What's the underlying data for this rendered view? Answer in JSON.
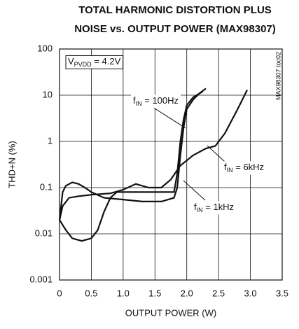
{
  "chart_data": {
    "type": "line",
    "title": [
      "TOTAL HARMONIC DISTORTION PLUS",
      "NOISE vs. OUTPUT POWER (MAX98307)"
    ],
    "x_label": "OUTPUT POWER (W)",
    "y_label": "THD+N (%)",
    "side_note": "MAX98307 toc02",
    "condition": {
      "main": "V",
      "sub": "PVDD",
      "rest": " = 4.2V"
    },
    "xlim": [
      0,
      3.5
    ],
    "xticks": [
      0,
      0.5,
      {
        "value": 1,
        "label": "1.0"
      },
      1.5,
      {
        "value": 2,
        "label": "2.0"
      },
      2.5,
      {
        "value": 3,
        "label": "3.0"
      },
      3.5
    ],
    "ylim": [
      0.001,
      100
    ],
    "yticks": [
      0.001,
      0.01,
      0.1,
      1,
      10,
      100
    ],
    "log_y": true,
    "grid": true,
    "series": [
      {
        "label": {
          "main": "f",
          "sub": "IN",
          "rest": " = 100Hz"
        },
        "color": "#111111",
        "x": [
          0,
          0.05,
          0.1,
          0.2,
          0.3,
          0.4,
          0.5,
          0.7,
          1.0,
          1.3,
          1.6,
          1.8,
          1.85,
          1.9,
          1.95,
          2.0,
          2.1,
          2.2,
          2.3
        ],
        "values": [
          0.02,
          0.08,
          0.11,
          0.13,
          0.12,
          0.1,
          0.08,
          0.06,
          0.055,
          0.05,
          0.05,
          0.06,
          0.1,
          0.5,
          2,
          5,
          8,
          11,
          14
        ]
      },
      {
        "label": {
          "main": "f",
          "sub": "IN",
          "rest": " = 1kHz"
        },
        "color": "#111111",
        "x": [
          0,
          0.1,
          0.2,
          0.35,
          0.5,
          0.6,
          0.7,
          0.8,
          0.9,
          1.0,
          1.5,
          1.8,
          1.85,
          1.9,
          1.95,
          2.0,
          2.1,
          2.25
        ],
        "values": [
          0.02,
          0.012,
          0.008,
          0.007,
          0.008,
          0.012,
          0.03,
          0.06,
          0.08,
          0.08,
          0.08,
          0.08,
          0.2,
          1,
          3,
          6,
          9,
          12
        ]
      },
      {
        "label": {
          "main": "f",
          "sub": "IN",
          "rest": " = 6kHz"
        },
        "color": "#111111",
        "x": [
          0,
          0.05,
          0.15,
          0.3,
          0.5,
          0.8,
          1.0,
          1.2,
          1.4,
          1.6,
          1.75,
          1.9,
          2.1,
          2.3,
          2.45,
          2.6,
          2.8,
          2.95
        ],
        "values": [
          0.02,
          0.04,
          0.06,
          0.065,
          0.07,
          0.075,
          0.09,
          0.12,
          0.1,
          0.1,
          0.15,
          0.3,
          0.5,
          0.7,
          0.8,
          1.5,
          5,
          13
        ]
      }
    ]
  }
}
